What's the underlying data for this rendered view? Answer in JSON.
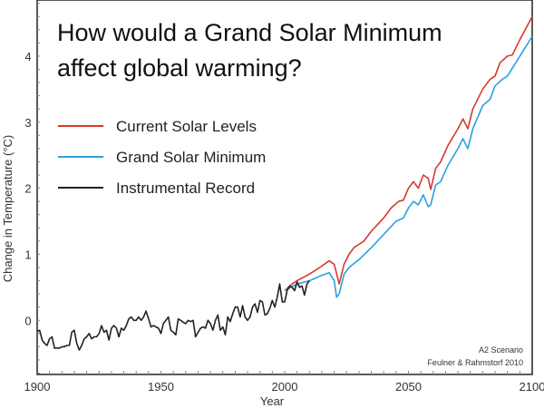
{
  "chart_data": {
    "type": "line",
    "title": [
      "How would a Grand Solar Minimum",
      "affect global warming?"
    ],
    "xlabel": "Year",
    "ylabel": "Change in Temperature (°C)",
    "xlim": [
      1900,
      2100
    ],
    "ylim": [
      -0.82,
      4.85
    ],
    "xticks": [
      1900,
      1950,
      2000,
      2050,
      2100
    ],
    "yticks": [
      0,
      1,
      2,
      3,
      4
    ],
    "grid": false,
    "legend_position": "top-left",
    "annotations": [
      "A2 Scenario",
      "Feulner & Rahmstorf 2010"
    ],
    "series": [
      {
        "name": "Current Solar Levels",
        "color": "#d43a2f",
        "x": [
          2000,
          2003,
          2005,
          2010,
          2015,
          2018,
          2020,
          2022,
          2024,
          2026,
          2028,
          2030,
          2032,
          2035,
          2040,
          2043,
          2046,
          2048,
          2050,
          2052,
          2054,
          2056,
          2058,
          2059,
          2061,
          2063,
          2066,
          2070,
          2072,
          2074,
          2076,
          2080,
          2083,
          2085,
          2087,
          2090,
          2092,
          2095,
          2100
        ],
        "y": [
          0.45,
          0.55,
          0.6,
          0.7,
          0.82,
          0.9,
          0.85,
          0.55,
          0.85,
          1.0,
          1.1,
          1.15,
          1.2,
          1.35,
          1.55,
          1.7,
          1.8,
          1.82,
          2.0,
          2.1,
          2.0,
          2.2,
          2.15,
          1.98,
          2.3,
          2.4,
          2.65,
          2.9,
          3.05,
          2.9,
          3.2,
          3.5,
          3.65,
          3.7,
          3.9,
          4.0,
          4.02,
          4.25,
          4.6
        ]
      },
      {
        "name": "Grand Solar Minimum",
        "color": "#2aa0e0",
        "x": [
          2000,
          2005,
          2010,
          2015,
          2018,
          2020,
          2021,
          2022,
          2024,
          2026,
          2030,
          2035,
          2040,
          2045,
          2048,
          2050,
          2052,
          2054,
          2056,
          2058,
          2059,
          2061,
          2063,
          2066,
          2070,
          2072,
          2074,
          2076,
          2080,
          2083,
          2085,
          2088,
          2090,
          2095,
          2100
        ],
        "y": [
          0.45,
          0.55,
          0.6,
          0.68,
          0.72,
          0.6,
          0.35,
          0.4,
          0.7,
          0.8,
          0.92,
          1.1,
          1.3,
          1.5,
          1.55,
          1.7,
          1.8,
          1.75,
          1.9,
          1.72,
          1.75,
          2.05,
          2.1,
          2.35,
          2.6,
          2.75,
          2.6,
          2.9,
          3.25,
          3.35,
          3.55,
          3.65,
          3.7,
          4.0,
          4.3
        ]
      },
      {
        "name": "Instrumental Record",
        "color": "#222222",
        "x_start": 1900,
        "y": [
          -0.17,
          -0.15,
          -0.3,
          -0.35,
          -0.38,
          -0.28,
          -0.25,
          -0.42,
          -0.42,
          -0.42,
          -0.4,
          -0.4,
          -0.38,
          -0.38,
          -0.18,
          -0.15,
          -0.35,
          -0.45,
          -0.38,
          -0.28,
          -0.25,
          -0.2,
          -0.28,
          -0.25,
          -0.25,
          -0.2,
          -0.08,
          -0.18,
          -0.15,
          -0.3,
          -0.12,
          -0.08,
          -0.12,
          -0.25,
          -0.12,
          -0.15,
          -0.08,
          0.02,
          0.05,
          0.0,
          0.0,
          0.05,
          0.0,
          0.05,
          0.14,
          0.02,
          -0.1,
          -0.08,
          -0.1,
          -0.12,
          -0.2,
          -0.05,
          0.0,
          0.05,
          -0.15,
          -0.18,
          -0.22,
          0.02,
          0.0,
          -0.03,
          -0.05,
          0.0,
          -0.02,
          0.0,
          -0.25,
          -0.18,
          -0.12,
          -0.1,
          -0.12,
          0.0,
          -0.05,
          -0.15,
          0.0,
          0.08,
          -0.15,
          -0.1,
          -0.22,
          0.05,
          -0.02,
          0.1,
          0.2,
          0.2,
          0.05,
          0.22,
          0.05,
          0.0,
          0.05,
          0.2,
          0.25,
          0.12,
          0.3,
          0.28,
          0.08,
          0.1,
          0.18,
          0.3,
          0.2,
          0.35,
          0.55,
          0.28,
          0.28,
          0.45,
          0.52,
          0.5,
          0.45,
          0.58,
          0.5,
          0.52,
          0.38,
          0.55,
          0.6
        ]
      }
    ]
  }
}
